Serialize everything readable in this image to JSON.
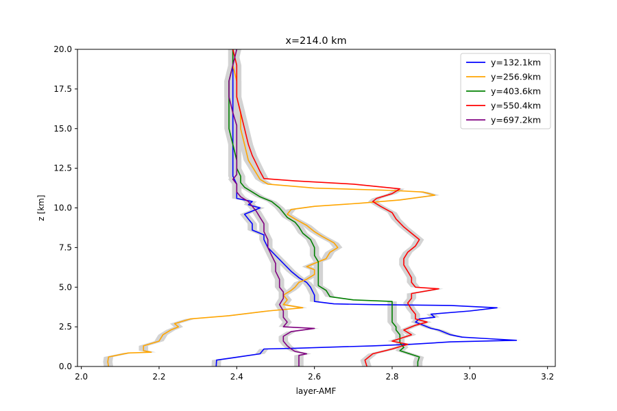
{
  "chart_data": {
    "type": "line",
    "title": "x=214.0 km",
    "xlabel": "layer-AMF",
    "ylabel": "z [km]",
    "xlim": [
      1.99,
      3.22
    ],
    "ylim": [
      0,
      20
    ],
    "xticks": [
      2.0,
      2.2,
      2.4,
      2.6,
      2.8,
      3.0,
      3.2
    ],
    "xtick_labels": [
      "2.0",
      "2.2",
      "2.4",
      "2.6",
      "2.8",
      "3.0",
      "3.2"
    ],
    "yticks": [
      0,
      2.5,
      5,
      7.5,
      10,
      12.5,
      15,
      17.5,
      20
    ],
    "ytick_labels": [
      "0.0",
      "2.5",
      "5.0",
      "7.5",
      "10.0",
      "12.5",
      "15.0",
      "17.5",
      "20.0"
    ],
    "grid": false,
    "legend_position": "top-right",
    "uncertainty_band": {
      "color": "#d3d3d3",
      "half_width": 0.012
    },
    "series": [
      {
        "name": "y=132.1km",
        "color": "#0000ff",
        "points": [
          [
            2.347,
            0.0
          ],
          [
            2.348,
            0.4
          ],
          [
            2.39,
            0.55
          ],
          [
            2.46,
            0.8
          ],
          [
            2.47,
            1.1
          ],
          [
            2.55,
            1.15
          ],
          [
            2.75,
            1.3
          ],
          [
            2.85,
            1.4
          ],
          [
            2.95,
            1.55
          ],
          [
            3.12,
            1.65
          ],
          [
            3.05,
            1.75
          ],
          [
            2.98,
            1.85
          ],
          [
            2.95,
            2.0
          ],
          [
            2.92,
            2.3
          ],
          [
            2.9,
            2.4
          ],
          [
            2.88,
            2.6
          ],
          [
            2.86,
            2.8
          ],
          [
            2.87,
            3.0
          ],
          [
            2.91,
            3.1
          ],
          [
            2.9,
            3.3
          ],
          [
            3.0,
            3.5
          ],
          [
            3.07,
            3.7
          ],
          [
            2.95,
            3.85
          ],
          [
            2.75,
            3.9
          ],
          [
            2.65,
            3.95
          ],
          [
            2.6,
            4.1
          ],
          [
            2.6,
            4.5
          ],
          [
            2.59,
            5.0
          ],
          [
            2.58,
            5.3
          ],
          [
            2.56,
            5.6
          ],
          [
            2.54,
            6.0
          ],
          [
            2.52,
            6.5
          ],
          [
            2.5,
            7.0
          ],
          [
            2.48,
            7.5
          ],
          [
            2.47,
            8.0
          ],
          [
            2.47,
            8.3
          ],
          [
            2.44,
            8.6
          ],
          [
            2.44,
            9.0
          ],
          [
            2.43,
            9.3
          ],
          [
            2.42,
            9.6
          ],
          [
            2.46,
            10.0
          ],
          [
            2.43,
            10.2
          ],
          [
            2.44,
            10.4
          ],
          [
            2.4,
            10.6
          ],
          [
            2.4,
            11.0
          ],
          [
            2.4,
            11.5
          ],
          [
            2.39,
            12.0
          ],
          [
            2.39,
            12.5
          ],
          [
            2.39,
            13.0
          ],
          [
            2.39,
            14.0
          ],
          [
            2.39,
            15.0
          ],
          [
            2.39,
            16.0
          ],
          [
            2.39,
            17.0
          ],
          [
            2.39,
            18.0
          ],
          [
            2.39,
            19.0
          ],
          [
            2.39,
            20.0
          ]
        ]
      },
      {
        "name": "y=256.9km",
        "color": "#ffa500",
        "points": [
          [
            2.07,
            0.0
          ],
          [
            2.068,
            0.3
          ],
          [
            2.07,
            0.6
          ],
          [
            2.12,
            0.85
          ],
          [
            2.18,
            0.9
          ],
          [
            2.16,
            1.0
          ],
          [
            2.16,
            1.3
          ],
          [
            2.2,
            1.6
          ],
          [
            2.21,
            2.0
          ],
          [
            2.23,
            2.3
          ],
          [
            2.25,
            2.5
          ],
          [
            2.24,
            2.7
          ],
          [
            2.28,
            3.0
          ],
          [
            2.38,
            3.2
          ],
          [
            2.48,
            3.5
          ],
          [
            2.57,
            3.7
          ],
          [
            2.52,
            3.9
          ],
          [
            2.53,
            4.2
          ],
          [
            2.52,
            4.5
          ],
          [
            2.54,
            4.8
          ],
          [
            2.55,
            5.0
          ],
          [
            2.56,
            5.3
          ],
          [
            2.58,
            5.5
          ],
          [
            2.6,
            5.8
          ],
          [
            2.6,
            6.1
          ],
          [
            2.58,
            6.3
          ],
          [
            2.6,
            6.5
          ],
          [
            2.63,
            6.8
          ],
          [
            2.64,
            7.2
          ],
          [
            2.66,
            7.5
          ],
          [
            2.65,
            7.8
          ],
          [
            2.62,
            8.2
          ],
          [
            2.6,
            8.5
          ],
          [
            2.58,
            8.9
          ],
          [
            2.55,
            9.3
          ],
          [
            2.53,
            9.6
          ],
          [
            2.54,
            9.9
          ],
          [
            2.6,
            10.1
          ],
          [
            2.72,
            10.3
          ],
          [
            2.82,
            10.5
          ],
          [
            2.91,
            10.8
          ],
          [
            2.88,
            11.0
          ],
          [
            2.8,
            11.1
          ],
          [
            2.6,
            11.25
          ],
          [
            2.48,
            11.5
          ],
          [
            2.46,
            11.8
          ],
          [
            2.45,
            12.2
          ],
          [
            2.44,
            12.6
          ],
          [
            2.43,
            13.0
          ],
          [
            2.42,
            14.0
          ],
          [
            2.41,
            15.0
          ],
          [
            2.41,
            16.0
          ],
          [
            2.4,
            17.0
          ],
          [
            2.4,
            18.0
          ],
          [
            2.39,
            19.0
          ],
          [
            2.39,
            20.0
          ]
        ]
      },
      {
        "name": "y=403.6km",
        "color": "#008000",
        "points": [
          [
            2.866,
            0.0
          ],
          [
            2.866,
            0.3
          ],
          [
            2.87,
            0.6
          ],
          [
            2.82,
            1.0
          ],
          [
            2.83,
            1.2
          ],
          [
            2.82,
            1.5
          ],
          [
            2.82,
            1.8
          ],
          [
            2.82,
            2.0
          ],
          [
            2.81,
            2.3
          ],
          [
            2.81,
            2.5
          ],
          [
            2.8,
            2.8
          ],
          [
            2.8,
            3.1
          ],
          [
            2.8,
            3.5
          ],
          [
            2.8,
            3.8
          ],
          [
            2.8,
            4.1
          ],
          [
            2.7,
            4.2
          ],
          [
            2.64,
            4.4
          ],
          [
            2.63,
            4.8
          ],
          [
            2.61,
            5.1
          ],
          [
            2.61,
            5.5
          ],
          [
            2.61,
            5.8
          ],
          [
            2.61,
            6.2
          ],
          [
            2.61,
            6.6
          ],
          [
            2.6,
            7.0
          ],
          [
            2.6,
            7.5
          ],
          [
            2.59,
            8.0
          ],
          [
            2.57,
            8.4
          ],
          [
            2.56,
            8.8
          ],
          [
            2.55,
            9.1
          ],
          [
            2.53,
            9.4
          ],
          [
            2.52,
            9.7
          ],
          [
            2.51,
            10.0
          ],
          [
            2.49,
            10.4
          ],
          [
            2.46,
            10.7
          ],
          [
            2.44,
            11.0
          ],
          [
            2.42,
            11.3
          ],
          [
            2.41,
            11.6
          ],
          [
            2.41,
            12.0
          ],
          [
            2.4,
            12.5
          ],
          [
            2.4,
            13.0
          ],
          [
            2.39,
            14.0
          ],
          [
            2.38,
            15.0
          ],
          [
            2.38,
            16.0
          ],
          [
            2.38,
            17.0
          ],
          [
            2.38,
            18.0
          ],
          [
            2.39,
            19.0
          ],
          [
            2.39,
            20.0
          ]
        ]
      },
      {
        "name": "y=550.4km",
        "color": "#ff0000",
        "points": [
          [
            2.735,
            0.0
          ],
          [
            2.73,
            0.4
          ],
          [
            2.75,
            0.8
          ],
          [
            2.8,
            1.1
          ],
          [
            2.84,
            1.4
          ],
          [
            2.8,
            1.6
          ],
          [
            2.85,
            2.0
          ],
          [
            2.83,
            2.3
          ],
          [
            2.86,
            2.6
          ],
          [
            2.89,
            2.8
          ],
          [
            2.86,
            3.0
          ],
          [
            2.86,
            3.3
          ],
          [
            2.85,
            3.6
          ],
          [
            2.84,
            4.0
          ],
          [
            2.85,
            4.3
          ],
          [
            2.85,
            4.6
          ],
          [
            2.92,
            4.9
          ],
          [
            2.86,
            5.0
          ],
          [
            2.85,
            5.3
          ],
          [
            2.85,
            5.6
          ],
          [
            2.84,
            6.0
          ],
          [
            2.83,
            6.4
          ],
          [
            2.83,
            6.8
          ],
          [
            2.84,
            7.2
          ],
          [
            2.86,
            7.6
          ],
          [
            2.87,
            8.0
          ],
          [
            2.85,
            8.4
          ],
          [
            2.83,
            8.8
          ],
          [
            2.81,
            9.3
          ],
          [
            2.8,
            9.7
          ],
          [
            2.77,
            10.1
          ],
          [
            2.75,
            10.4
          ],
          [
            2.76,
            10.6
          ],
          [
            2.8,
            10.9
          ],
          [
            2.82,
            11.2
          ],
          [
            2.7,
            11.5
          ],
          [
            2.55,
            11.7
          ],
          [
            2.47,
            11.85
          ],
          [
            2.46,
            12.3
          ],
          [
            2.45,
            12.8
          ],
          [
            2.44,
            13.3
          ],
          [
            2.43,
            14.0
          ],
          [
            2.42,
            15.0
          ],
          [
            2.41,
            16.0
          ],
          [
            2.4,
            17.0
          ],
          [
            2.4,
            18.0
          ],
          [
            2.4,
            19.0
          ],
          [
            2.39,
            20.0
          ]
        ]
      },
      {
        "name": "y=697.2km",
        "color": "#800080",
        "points": [
          [
            2.56,
            0.0
          ],
          [
            2.56,
            0.4
          ],
          [
            2.56,
            0.7
          ],
          [
            2.58,
            0.8
          ],
          [
            2.55,
            0.95
          ],
          [
            2.54,
            1.1
          ],
          [
            2.53,
            1.3
          ],
          [
            2.52,
            1.6
          ],
          [
            2.52,
            1.9
          ],
          [
            2.54,
            2.2
          ],
          [
            2.6,
            2.4
          ],
          [
            2.52,
            2.5
          ],
          [
            2.53,
            2.8
          ],
          [
            2.52,
            3.1
          ],
          [
            2.52,
            3.5
          ],
          [
            2.51,
            3.9
          ],
          [
            2.52,
            4.3
          ],
          [
            2.52,
            4.7
          ],
          [
            2.51,
            5.0
          ],
          [
            2.51,
            5.5
          ],
          [
            2.5,
            6.0
          ],
          [
            2.5,
            6.5
          ],
          [
            2.49,
            7.0
          ],
          [
            2.48,
            7.5
          ],
          [
            2.48,
            8.0
          ],
          [
            2.47,
            8.5
          ],
          [
            2.47,
            9.0
          ],
          [
            2.46,
            9.4
          ],
          [
            2.45,
            9.8
          ],
          [
            2.44,
            10.1
          ],
          [
            2.43,
            10.4
          ],
          [
            2.41,
            10.7
          ],
          [
            2.4,
            11.0
          ],
          [
            2.4,
            11.5
          ],
          [
            2.39,
            11.8
          ],
          [
            2.4,
            12.1
          ],
          [
            2.4,
            12.6
          ],
          [
            2.4,
            13.2
          ],
          [
            2.4,
            13.8
          ],
          [
            2.4,
            14.5
          ],
          [
            2.4,
            15.2
          ],
          [
            2.39,
            16.0
          ],
          [
            2.38,
            17.0
          ],
          [
            2.38,
            18.0
          ],
          [
            2.39,
            19.0
          ],
          [
            2.4,
            20.0
          ]
        ]
      }
    ]
  }
}
